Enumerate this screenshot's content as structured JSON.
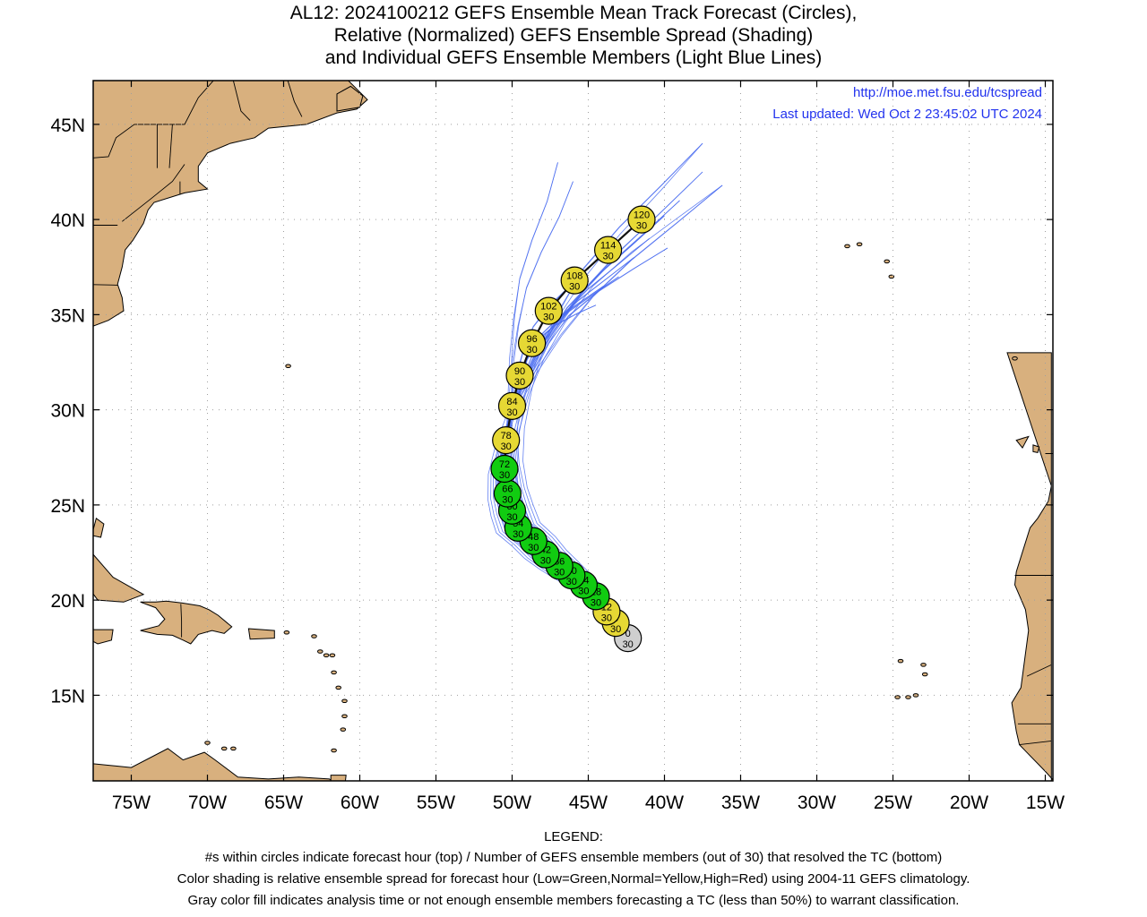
{
  "title": {
    "line1": "AL12: 2024100212 GEFS Ensemble Mean Track Forecast (Circles),",
    "line2": "Relative (Normalized) GEFS Ensemble Spread (Shading)",
    "line3": "and Individual GEFS Ensemble Members (Light Blue Lines)"
  },
  "map": {
    "url_text": "http://moe.met.fsu.edu/tcspread",
    "updated_text": "Last updated: Wed Oct 2 23:45:02 UTC 2024",
    "lon_range": [
      -77.5,
      -14.5
    ],
    "lat_range": [
      10.5,
      47.3
    ],
    "lon_ticks": [
      {
        "value": -75,
        "label": "75W"
      },
      {
        "value": -70,
        "label": "70W"
      },
      {
        "value": -65,
        "label": "65W"
      },
      {
        "value": -60,
        "label": "60W"
      },
      {
        "value": -55,
        "label": "55W"
      },
      {
        "value": -50,
        "label": "50W"
      },
      {
        "value": -45,
        "label": "45W"
      },
      {
        "value": -40,
        "label": "40W"
      },
      {
        "value": -35,
        "label": "35W"
      },
      {
        "value": -30,
        "label": "30W"
      },
      {
        "value": -25,
        "label": "25W"
      },
      {
        "value": -20,
        "label": "20W"
      },
      {
        "value": -15,
        "label": "15W"
      }
    ],
    "lat_ticks": [
      {
        "value": 15,
        "label": "15N"
      },
      {
        "value": 20,
        "label": "20N"
      },
      {
        "value": 25,
        "label": "25N"
      },
      {
        "value": 30,
        "label": "30N"
      },
      {
        "value": 35,
        "label": "35N"
      },
      {
        "value": 40,
        "label": "40N"
      },
      {
        "value": 45,
        "label": "45N"
      }
    ],
    "colors": {
      "land": "#d8b07e",
      "coast": "#000000",
      "member_track": "#4a6cf0",
      "link_text": "#2233ee",
      "grid": "#a0a0a0",
      "low_spread": "#11cc11",
      "normal_spread": "#e6d834",
      "analysis": "#cfcfcf"
    }
  },
  "track": [
    {
      "hour": "0",
      "members": "30",
      "lon": -42.4,
      "lat": 18.0,
      "spread": "analysis"
    },
    {
      "hour": "6",
      "members": "30",
      "lon": -43.2,
      "lat": 18.8,
      "spread": "normal"
    },
    {
      "hour": "12",
      "members": "30",
      "lon": -43.8,
      "lat": 19.4,
      "spread": "normal"
    },
    {
      "hour": "18",
      "members": "30",
      "lon": -44.5,
      "lat": 20.2,
      "spread": "low"
    },
    {
      "hour": "24",
      "members": "30",
      "lon": -45.3,
      "lat": 20.8,
      "spread": "low"
    },
    {
      "hour": "30",
      "members": "30",
      "lon": -46.1,
      "lat": 21.3,
      "spread": "low"
    },
    {
      "hour": "36",
      "members": "30",
      "lon": -46.9,
      "lat": 21.8,
      "spread": "low"
    },
    {
      "hour": "42",
      "members": "30",
      "lon": -47.8,
      "lat": 22.4,
      "spread": "low"
    },
    {
      "hour": "48",
      "members": "30",
      "lon": -48.6,
      "lat": 23.1,
      "spread": "low"
    },
    {
      "hour": "54",
      "members": "30",
      "lon": -49.6,
      "lat": 23.8,
      "spread": "low"
    },
    {
      "hour": "60",
      "members": "30",
      "lon": -50.0,
      "lat": 24.7,
      "spread": "low"
    },
    {
      "hour": "66",
      "members": "30",
      "lon": -50.3,
      "lat": 25.6,
      "spread": "low"
    },
    {
      "hour": "72",
      "members": "30",
      "lon": -50.5,
      "lat": 26.9,
      "spread": "low"
    },
    {
      "hour": "78",
      "members": "30",
      "lon": -50.4,
      "lat": 28.4,
      "spread": "normal"
    },
    {
      "hour": "84",
      "members": "30",
      "lon": -50.0,
      "lat": 30.2,
      "spread": "normal"
    },
    {
      "hour": "90",
      "members": "30",
      "lon": -49.5,
      "lat": 31.8,
      "spread": "normal"
    },
    {
      "hour": "96",
      "members": "30",
      "lon": -48.7,
      "lat": 33.5,
      "spread": "normal"
    },
    {
      "hour": "102",
      "members": "30",
      "lon": -47.6,
      "lat": 35.2,
      "spread": "normal"
    },
    {
      "hour": "108",
      "members": "30",
      "lon": -45.9,
      "lat": 36.8,
      "spread": "normal"
    },
    {
      "hour": "114",
      "members": "30",
      "lon": -43.7,
      "lat": 38.4,
      "spread": "normal"
    },
    {
      "hour": "120",
      "members": "30",
      "lon": -41.5,
      "lat": 40.0,
      "spread": "normal"
    }
  ],
  "legend": {
    "heading": "LEGEND:",
    "line1": "#s within circles indicate forecast hour (top) / Number of GEFS ensemble members (out of 30) that resolved the TC (bottom)",
    "line2": "Color shading is relative ensemble spread for forecast hour (Low=Green,Normal=Yellow,High=Red) using 2004-11 GEFS climatology.",
    "line3": "Gray color fill indicates analysis time or not enough ensemble members forecasting a TC (less than 50%) to warrant classification."
  }
}
